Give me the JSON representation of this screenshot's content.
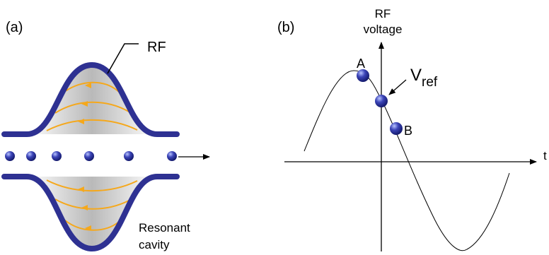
{
  "panel_a": {
    "label": "(a)",
    "rf_label": "RF",
    "cavity_label_line1": "Resonant",
    "cavity_label_line2": "cavity",
    "colors": {
      "cavity_wall": "#2e3192",
      "field_lines": "#f5a81c",
      "bunch": "#2e3192"
    }
  },
  "panel_b": {
    "label": "(b)",
    "y_axis_label_line1": "RF",
    "y_axis_label_line2": "voltage",
    "x_axis_label": "t",
    "point_a_label": "A",
    "point_b_label": "B",
    "vref_main": "V",
    "vref_sub": "ref"
  }
}
